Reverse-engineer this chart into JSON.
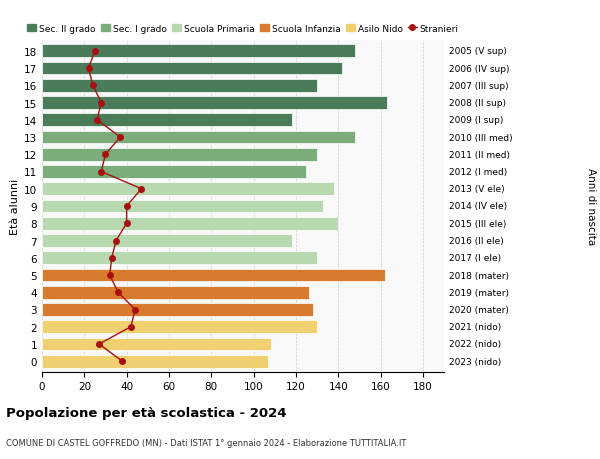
{
  "ages": [
    18,
    17,
    16,
    15,
    14,
    13,
    12,
    11,
    10,
    9,
    8,
    7,
    6,
    5,
    4,
    3,
    2,
    1,
    0
  ],
  "anni_nascita": [
    "2005 (V sup)",
    "2006 (IV sup)",
    "2007 (III sup)",
    "2008 (II sup)",
    "2009 (I sup)",
    "2010 (III med)",
    "2011 (II med)",
    "2012 (I med)",
    "2013 (V ele)",
    "2014 (IV ele)",
    "2015 (III ele)",
    "2016 (II ele)",
    "2017 (I ele)",
    "2018 (mater)",
    "2019 (mater)",
    "2020 (mater)",
    "2021 (nido)",
    "2022 (nido)",
    "2023 (nido)"
  ],
  "bar_values": [
    148,
    142,
    130,
    163,
    118,
    148,
    130,
    125,
    138,
    133,
    140,
    118,
    130,
    162,
    126,
    128,
    130,
    108,
    107
  ],
  "stranieri": [
    25,
    22,
    24,
    28,
    26,
    37,
    30,
    28,
    47,
    40,
    40,
    35,
    33,
    32,
    36,
    44,
    42,
    27,
    38
  ],
  "bar_colors": [
    "#4a7c59",
    "#4a7c59",
    "#4a7c59",
    "#4a7c59",
    "#4a7c59",
    "#7aad7a",
    "#7aad7a",
    "#7aad7a",
    "#b8d8b0",
    "#b8d8b0",
    "#b8d8b0",
    "#b8d8b0",
    "#b8d8b0",
    "#d97b2e",
    "#d97b2e",
    "#d97b2e",
    "#f0d070",
    "#f0d070",
    "#f0d070"
  ],
  "legend_labels": [
    "Sec. II grado",
    "Sec. I grado",
    "Scuola Primaria",
    "Scuola Infanzia",
    "Asilo Nido",
    "Stranieri"
  ],
  "legend_colors": [
    "#4a7c59",
    "#7aad7a",
    "#b8d8b0",
    "#d97b2e",
    "#f0d070",
    "#a81010"
  ],
  "stranieri_color": "#a81010",
  "title": "Popolazione per età scolastica - 2024",
  "subtitle": "COMUNE DI CASTEL GOFFREDO (MN) - Dati ISTAT 1° gennaio 2024 - Elaborazione TUTTITALIA.IT",
  "ylabel_left": "Età alunni",
  "ylabel_right": "Anni di nascita",
  "xlim": [
    0,
    190
  ],
  "xticks": [
    0,
    20,
    40,
    60,
    80,
    100,
    120,
    140,
    160,
    180
  ],
  "background_color": "#ffffff",
  "plot_bg_color": "#f9f9f9",
  "grid_color": "#cccccc"
}
